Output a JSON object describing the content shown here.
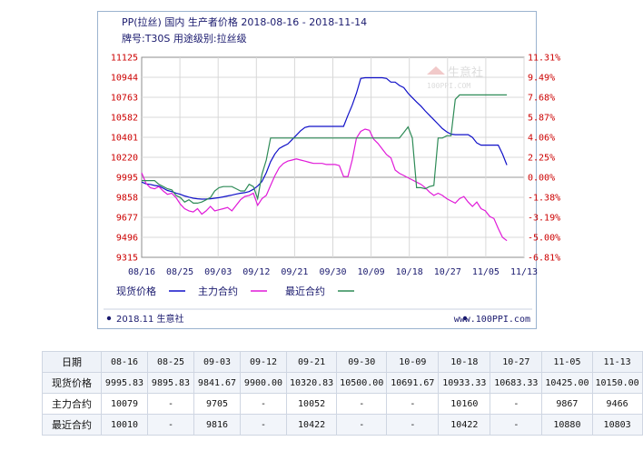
{
  "header": {
    "title": "PP(拉丝) 国内 生产者价格  2018-08-16 - 2018-11-14",
    "subtitle": "牌号:T30S 用途级别:拉丝级"
  },
  "watermark": {
    "brand": "生意社",
    "url": "100PPI.COM"
  },
  "footer": {
    "left": "2018.11 生意社",
    "right": "www.100PPI.com"
  },
  "chart_data": {
    "type": "line",
    "x_tick_labels": [
      "08/16",
      "08/25",
      "09/03",
      "09/12",
      "09/21",
      "09/30",
      "10/09",
      "10/18",
      "10/27",
      "11/05",
      "11/13"
    ],
    "y_left_ticks": [
      "11125",
      "10944",
      "10763",
      "10582",
      "10401",
      "10220",
      "9995",
      "9858",
      "9677",
      "9496",
      "9315"
    ],
    "y_left_range": [
      9315,
      11125
    ],
    "y_right_ticks": [
      "11.31%",
      "9.49%",
      "7.68%",
      "5.87%",
      "4.06%",
      "2.25%",
      "0.00%",
      "-1.38%",
      "-3.19%",
      "-5.00%",
      "-6.81%"
    ],
    "y_right_range": [
      -6.81,
      11.31
    ],
    "grid": true,
    "legend_position": "bottom",
    "series": [
      {
        "name": "现货价格",
        "color": "#1010c8",
        "axis": "left",
        "points": [
          [
            0,
            9995.83
          ],
          [
            1,
            9980
          ],
          [
            2,
            9975
          ],
          [
            3,
            9965
          ],
          [
            4,
            9960
          ],
          [
            5,
            9940
          ],
          [
            6,
            9920
          ],
          [
            7,
            9910
          ],
          [
            8,
            9895.83
          ],
          [
            9,
            9885
          ],
          [
            10,
            9870
          ],
          [
            11,
            9860
          ],
          [
            12,
            9850
          ],
          [
            13,
            9845
          ],
          [
            14,
            9841.67
          ],
          [
            15,
            9842
          ],
          [
            16,
            9845
          ],
          [
            17,
            9850
          ],
          [
            18,
            9855
          ],
          [
            19,
            9862
          ],
          [
            20,
            9870
          ],
          [
            21,
            9878
          ],
          [
            22,
            9888
          ],
          [
            23,
            9895
          ],
          [
            24,
            9900
          ],
          [
            25,
            9910
          ],
          [
            26,
            9930
          ],
          [
            27,
            9960
          ],
          [
            28,
            10000
          ],
          [
            29,
            10080
          ],
          [
            30,
            10180
          ],
          [
            31,
            10250
          ],
          [
            32,
            10300
          ],
          [
            33,
            10320.83
          ],
          [
            34,
            10340
          ],
          [
            35,
            10380
          ],
          [
            36,
            10420
          ],
          [
            37,
            10460
          ],
          [
            38,
            10490
          ],
          [
            39,
            10500
          ],
          [
            40,
            10500
          ],
          [
            41,
            10500
          ],
          [
            42,
            10500
          ],
          [
            43,
            10500
          ],
          [
            44,
            10500
          ],
          [
            45,
            10500
          ],
          [
            46,
            10500
          ],
          [
            47,
            10500
          ],
          [
            48,
            10600
          ],
          [
            49,
            10691.67
          ],
          [
            50,
            10800
          ],
          [
            51,
            10933.33
          ],
          [
            52,
            10940
          ],
          [
            53,
            10940
          ],
          [
            54,
            10940
          ],
          [
            55,
            10940
          ],
          [
            56,
            10940
          ],
          [
            57,
            10933.33
          ],
          [
            58,
            10900
          ],
          [
            59,
            10900
          ],
          [
            60,
            10870
          ],
          [
            61,
            10850
          ],
          [
            62,
            10800
          ],
          [
            63,
            10760
          ],
          [
            64,
            10720
          ],
          [
            65,
            10683.33
          ],
          [
            66,
            10640
          ],
          [
            67,
            10600
          ],
          [
            68,
            10560
          ],
          [
            69,
            10520
          ],
          [
            70,
            10480
          ],
          [
            71,
            10450
          ],
          [
            72,
            10430
          ],
          [
            73,
            10425
          ],
          [
            74,
            10425
          ],
          [
            75,
            10425
          ],
          [
            76,
            10425
          ],
          [
            77,
            10400
          ],
          [
            78,
            10350
          ],
          [
            79,
            10330
          ],
          [
            80,
            10330
          ],
          [
            81,
            10330
          ],
          [
            82,
            10330
          ],
          [
            83,
            10330
          ],
          [
            84,
            10250
          ],
          [
            85,
            10150
          ]
        ]
      },
      {
        "name": "主力合约",
        "color": "#e01ad8",
        "axis": "right",
        "points": [
          [
            0,
            0.84
          ],
          [
            1,
            -0.1
          ],
          [
            2,
            -0.5
          ],
          [
            3,
            -0.6
          ],
          [
            4,
            -0.4
          ],
          [
            5,
            -0.8
          ],
          [
            6,
            -1.1
          ],
          [
            7,
            -1.0
          ],
          [
            8,
            -1.4
          ],
          [
            9,
            -2.0
          ],
          [
            10,
            -2.4
          ],
          [
            11,
            -2.6
          ],
          [
            12,
            -2.7
          ],
          [
            13,
            -2.4
          ],
          [
            14,
            -2.9
          ],
          [
            15,
            -2.6
          ],
          [
            16,
            -2.2
          ],
          [
            17,
            -2.6
          ],
          [
            18,
            -2.5
          ],
          [
            19,
            -2.4
          ],
          [
            20,
            -2.3
          ],
          [
            21,
            -2.6
          ],
          [
            22,
            -2.1
          ],
          [
            23,
            -1.6
          ],
          [
            24,
            -1.3
          ],
          [
            25,
            -1.2
          ],
          [
            26,
            -1.0
          ],
          [
            27,
            -2.1
          ],
          [
            28,
            -1.5
          ],
          [
            29,
            -1.2
          ],
          [
            30,
            -0.3
          ],
          [
            31,
            0.57
          ],
          [
            32,
            1.3
          ],
          [
            33,
            1.7
          ],
          [
            34,
            1.9
          ],
          [
            35,
            2.0
          ],
          [
            36,
            2.1
          ],
          [
            37,
            2.0
          ],
          [
            38,
            1.9
          ],
          [
            39,
            1.8
          ],
          [
            40,
            1.7
          ],
          [
            41,
            1.7
          ],
          [
            42,
            1.7
          ],
          [
            43,
            1.6
          ],
          [
            44,
            1.6
          ],
          [
            45,
            1.6
          ],
          [
            46,
            1.5
          ],
          [
            47,
            0.5
          ],
          [
            48,
            0.5
          ],
          [
            49,
            2.0
          ],
          [
            50,
            4.0
          ],
          [
            51,
            4.6
          ],
          [
            52,
            4.8
          ],
          [
            53,
            4.7
          ],
          [
            54,
            3.9
          ],
          [
            55,
            3.5
          ],
          [
            56,
            3.0
          ],
          [
            57,
            2.5
          ],
          [
            58,
            2.2
          ],
          [
            59,
            1.1
          ],
          [
            60,
            0.8
          ],
          [
            61,
            0.6
          ],
          [
            62,
            0.4
          ],
          [
            63,
            0.2
          ],
          [
            64,
            0.0
          ],
          [
            65,
            -0.2
          ],
          [
            66,
            -0.5
          ],
          [
            67,
            -0.9
          ],
          [
            68,
            -1.2
          ],
          [
            69,
            -1.0
          ],
          [
            70,
            -1.2
          ],
          [
            71,
            -1.5
          ],
          [
            72,
            -1.7
          ],
          [
            73,
            -1.9
          ],
          [
            74,
            -1.5
          ],
          [
            75,
            -1.3
          ],
          [
            76,
            -1.8
          ],
          [
            77,
            -2.2
          ],
          [
            78,
            -1.8
          ],
          [
            79,
            -2.4
          ],
          [
            80,
            -2.6
          ],
          [
            81,
            -3.1
          ],
          [
            82,
            -3.3
          ],
          [
            83,
            -4.2
          ],
          [
            84,
            -5.0
          ],
          [
            85,
            -5.3
          ]
        ]
      },
      {
        "name": "最近合约",
        "color": "#2e8b57",
        "axis": "right",
        "points": [
          [
            0,
            0.14
          ],
          [
            1,
            0.14
          ],
          [
            2,
            0.14
          ],
          [
            3,
            0.14
          ],
          [
            4,
            -0.2
          ],
          [
            5,
            -0.4
          ],
          [
            6,
            -0.6
          ],
          [
            7,
            -0.7
          ],
          [
            8,
            -1.2
          ],
          [
            9,
            -1.4
          ],
          [
            10,
            -1.8
          ],
          [
            11,
            -1.6
          ],
          [
            12,
            -1.9
          ],
          [
            13,
            -1.9
          ],
          [
            14,
            -1.8
          ],
          [
            15,
            -1.6
          ],
          [
            16,
            -1.4
          ],
          [
            17,
            -0.8
          ],
          [
            18,
            -0.5
          ],
          [
            19,
            -0.4
          ],
          [
            20,
            -0.4
          ],
          [
            21,
            -0.4
          ],
          [
            22,
            -0.6
          ],
          [
            23,
            -0.8
          ],
          [
            24,
            -0.8
          ],
          [
            25,
            -0.2
          ],
          [
            26,
            -0.4
          ],
          [
            27,
            -1.5
          ],
          [
            28,
            0.7
          ],
          [
            29,
            2.0
          ],
          [
            30,
            4.0
          ],
          [
            31,
            4.0
          ],
          [
            32,
            4.0
          ],
          [
            33,
            4.0
          ],
          [
            34,
            4.0
          ],
          [
            35,
            4.0
          ],
          [
            36,
            4.0
          ],
          [
            37,
            4.0
          ],
          [
            38,
            4.0
          ],
          [
            39,
            4.0
          ],
          [
            40,
            4.0
          ],
          [
            41,
            4.0
          ],
          [
            42,
            4.0
          ],
          [
            43,
            4.0
          ],
          [
            44,
            4.0
          ],
          [
            45,
            4.0
          ],
          [
            46,
            4.0
          ],
          [
            47,
            4.0
          ],
          [
            48,
            4.0
          ],
          [
            49,
            4.0
          ],
          [
            50,
            4.0
          ],
          [
            51,
            4.0
          ],
          [
            52,
            4.0
          ],
          [
            53,
            4.0
          ],
          [
            54,
            4.0
          ],
          [
            55,
            4.0
          ],
          [
            56,
            4.0
          ],
          [
            57,
            4.0
          ],
          [
            58,
            4.0
          ],
          [
            59,
            4.0
          ],
          [
            60,
            4.0
          ],
          [
            61,
            4.5
          ],
          [
            62,
            5.0
          ],
          [
            63,
            4.0
          ],
          [
            64,
            -0.5
          ],
          [
            65,
            -0.5
          ],
          [
            66,
            -0.6
          ],
          [
            67,
            -0.4
          ],
          [
            68,
            -0.3
          ],
          [
            69,
            4.0
          ],
          [
            70,
            4.0
          ],
          [
            71,
            4.2
          ],
          [
            72,
            4.2
          ],
          [
            73,
            7.5
          ],
          [
            74,
            7.9
          ],
          [
            75,
            7.9
          ],
          [
            76,
            7.9
          ],
          [
            77,
            7.9
          ],
          [
            78,
            7.9
          ],
          [
            79,
            7.9
          ],
          [
            80,
            7.9
          ],
          [
            81,
            7.9
          ],
          [
            82,
            7.9
          ],
          [
            83,
            7.9
          ],
          [
            84,
            7.9
          ],
          [
            85,
            7.9
          ]
        ]
      }
    ],
    "x_index_range": [
      0,
      89
    ]
  },
  "table": {
    "headers": [
      "日期",
      "08-16",
      "08-25",
      "09-03",
      "09-12",
      "09-21",
      "09-30",
      "10-09",
      "10-18",
      "10-27",
      "11-05",
      "11-13"
    ],
    "rows": [
      [
        "现货价格",
        "9995.83",
        "9895.83",
        "9841.67",
        "9900.00",
        "10320.83",
        "10500.00",
        "10691.67",
        "10933.33",
        "10683.33",
        "10425.00",
        "10150.00"
      ],
      [
        "主力合约",
        "10079",
        "-",
        "9705",
        "-",
        "10052",
        "-",
        "-",
        "10160",
        "-",
        "9867",
        "9466"
      ],
      [
        "最近合约",
        "10010",
        "-",
        "9816",
        "-",
        "10422",
        "-",
        "-",
        "10422",
        "-",
        "10880",
        "10803"
      ]
    ]
  },
  "colors": {
    "axis_left": "#cc0000",
    "axis_right": "#cc0000",
    "grid": "#d8d8d8",
    "legend_text": "#1a1a6e"
  }
}
